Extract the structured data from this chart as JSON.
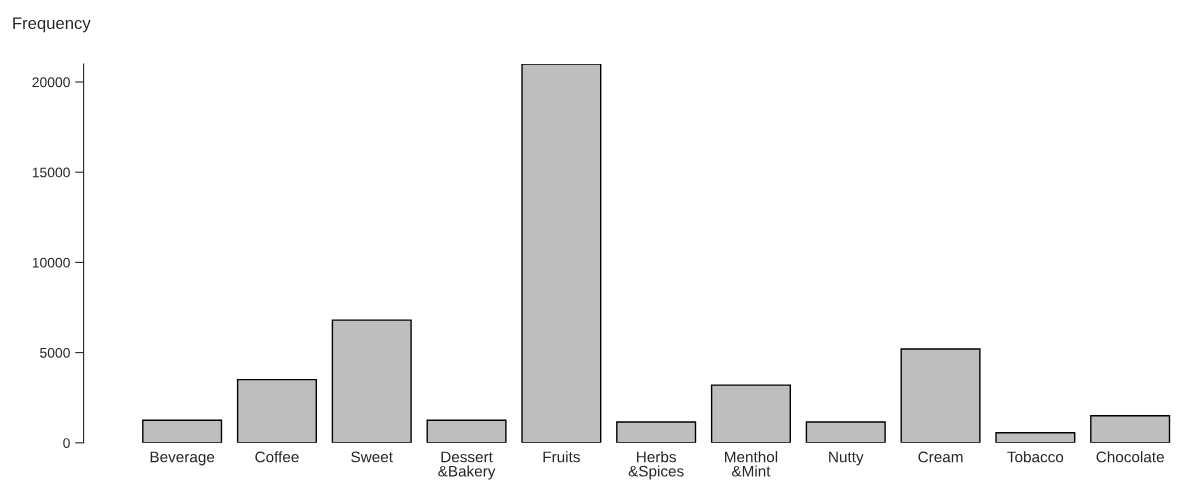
{
  "chart_data": {
    "type": "bar",
    "ylabel": "Frequency",
    "categories": [
      "Beverage",
      "Coffee",
      "Sweet",
      "Dessert\n&Bakery",
      "Fruits",
      "Herbs\n&Spices",
      "Menthol\n&Mint",
      "Nutty",
      "Cream",
      "Tobacco",
      "Chocolate"
    ],
    "values": [
      1250,
      3500,
      6800,
      1250,
      21000,
      1150,
      3200,
      1150,
      5200,
      560,
      1500
    ],
    "color": "#bebebe",
    "ylim": [
      0,
      21000
    ],
    "yticks": [
      0,
      5000,
      10000,
      15000,
      20000
    ],
    "grid": false
  }
}
